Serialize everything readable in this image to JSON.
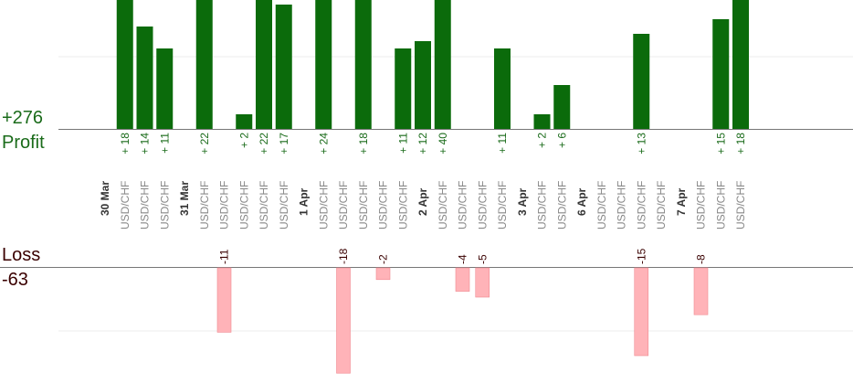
{
  "summary": {
    "profit_total": "+276",
    "profit_label": "Profit",
    "loss_label": "Loss",
    "loss_total": "-63"
  },
  "colors": {
    "profit_bar": "#0b6b0b",
    "profit_text": "#1a6b1a",
    "loss_bar": "#ffb3b8",
    "loss_text": "#3a0000",
    "category_label": "#888888",
    "date_label": "#333333"
  },
  "chart_data": {
    "type": "bar",
    "categories": [
      "30 Mar",
      "USD/CHF",
      "USD/CHF",
      "USD/CHF",
      "31 Mar",
      "USD/CHF",
      "USD/CHF",
      "USD/CHF",
      "USD/CHF",
      "USD/CHF",
      "1 Apr",
      "USD/CHF",
      "USD/CHF",
      "USD/CHF",
      "USD/CHF",
      "USD/CHF",
      "2 Apr",
      "USD/CHF",
      "USD/CHF",
      "USD/CHF",
      "USD/CHF",
      "3 Apr",
      "USD/CHF",
      "USD/CHF",
      "6 Apr",
      "USD/CHF",
      "USD/CHF",
      "USD/CHF",
      "USD/CHF",
      "7 Apr",
      "USD/CHF",
      "USD/CHF",
      "USD/CHF"
    ],
    "series": [
      {
        "values": [
          0,
          18,
          14,
          11,
          0,
          22,
          0,
          2,
          22,
          17,
          0,
          24,
          0,
          18,
          0,
          11,
          12,
          40,
          0,
          0,
          11,
          0,
          2,
          6,
          0,
          0,
          0,
          13,
          0,
          0,
          0,
          15,
          18
        ],
        "labels": [
          "",
          "+ 18",
          "+ 14",
          "+ 11",
          "",
          "+ 22",
          "",
          "+ 2",
          "+ 22",
          "+ 17",
          "",
          "+ 24",
          "",
          "+ 18",
          "",
          "+ 11",
          "+ 12",
          "+ 40",
          "",
          "",
          "+ 11",
          "",
          "+ 2",
          "+ 6",
          "",
          "",
          "",
          "+ 13",
          "",
          "",
          "",
          "+ 15",
          "+ 18"
        ]
      },
      {
        "values": [
          0,
          0,
          0,
          0,
          0,
          0,
          -11,
          0,
          0,
          0,
          0,
          0,
          -18,
          0,
          -2,
          0,
          0,
          0,
          -4,
          -5,
          0,
          0,
          0,
          0,
          0,
          0,
          0,
          -15,
          0,
          0,
          -8,
          0,
          0
        ],
        "labels": [
          "",
          "",
          "",
          "",
          "",
          "",
          "-11",
          "",
          "",
          "",
          "",
          "",
          "-18",
          "",
          "-2",
          "",
          "",
          "",
          "-4",
          "-5",
          "",
          "",
          "",
          "",
          "",
          "",
          "",
          "-15",
          "",
          "",
          "-8",
          "",
          ""
        ]
      }
    ],
    "profit_axis_max": 20,
    "loss_axis_min": -20,
    "grid": true
  }
}
